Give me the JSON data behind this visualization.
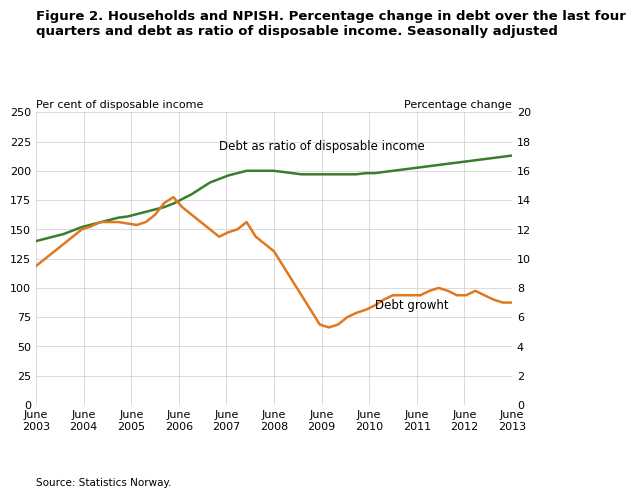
{
  "title": "Figure 2. Households and NPISH. Percentage change in debt over the last four\nquarters and debt as ratio of disposable income. Seasonally adjusted",
  "ylabel_left": "Per cent of disposable income",
  "ylabel_right": "Percentage change",
  "source": "Source: Statistics Norway.",
  "xlabels": [
    "June\n2003",
    "June\n2004",
    "June\n2005",
    "June\n2006",
    "June\n2007",
    "June\n2008",
    "June\n2009",
    "June\n2010",
    "June\n2011",
    "June\n2012",
    "June\n2013"
  ],
  "ylim_left": [
    0,
    250
  ],
  "ylim_right": [
    0,
    20
  ],
  "yticks_left": [
    0,
    25,
    50,
    75,
    100,
    125,
    150,
    175,
    200,
    225,
    250
  ],
  "yticks_right": [
    0,
    2,
    4,
    6,
    8,
    10,
    12,
    14,
    16,
    18,
    20
  ],
  "debt_ratio_color": "#3a7d2c",
  "debt_growth_color": "#e07820",
  "debt_ratio_label": "Debt as ratio of disposable income",
  "debt_growth_label": "Debt growht",
  "debt_ratio": [
    140,
    142,
    144,
    146,
    149,
    152,
    154,
    156,
    158,
    160,
    161,
    163,
    165,
    167,
    169,
    172,
    176,
    180,
    185,
    190,
    193,
    196,
    198,
    200,
    200,
    200,
    200,
    199,
    198,
    197,
    197,
    197,
    197,
    197,
    197,
    197,
    198,
    198,
    199,
    200,
    201,
    202,
    203,
    204,
    205,
    206,
    207,
    208,
    209,
    210,
    211,
    212,
    213
  ],
  "debt_growth": [
    9.5,
    10.0,
    10.5,
    11.0,
    11.5,
    12.0,
    12.2,
    12.5,
    12.5,
    12.5,
    12.4,
    12.3,
    12.5,
    13.0,
    13.8,
    14.2,
    13.5,
    13.0,
    12.5,
    12.0,
    11.5,
    11.8,
    12.0,
    12.5,
    11.5,
    11.0,
    10.5,
    9.5,
    8.5,
    7.5,
    6.5,
    5.5,
    5.3,
    5.5,
    6.0,
    6.3,
    6.5,
    6.8,
    7.2,
    7.5,
    7.5,
    7.5,
    7.5,
    7.8,
    8.0,
    7.8,
    7.5,
    7.5,
    7.8,
    7.5,
    7.2,
    7.0,
    7.0
  ],
  "n_quarters": 53,
  "background_color": "#ffffff",
  "grid_color": "#cccccc"
}
